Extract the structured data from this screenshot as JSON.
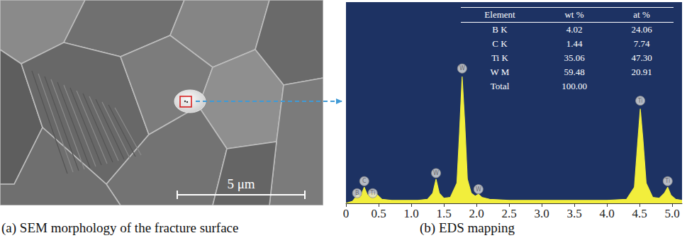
{
  "image": {
    "scale_bar": "5 μm",
    "caption": "(a) SEM morphology of the fracture surface"
  },
  "chart_data": {
    "type": "area",
    "caption": "(b) EDS mapping",
    "x": [
      0,
      0.1,
      0.15,
      0.18,
      0.22,
      0.28,
      0.33,
      0.4,
      0.47,
      0.55,
      0.7,
      0.9,
      1.1,
      1.25,
      1.33,
      1.38,
      1.43,
      1.5,
      1.6,
      1.7,
      1.74,
      1.78,
      1.82,
      1.86,
      1.92,
      1.98,
      2.03,
      2.08,
      2.2,
      2.5,
      3,
      3.5,
      4,
      4.3,
      4.42,
      4.47,
      4.51,
      4.55,
      4.6,
      4.7,
      4.8,
      4.88,
      4.93,
      4.98,
      5.05,
      5.15
    ],
    "values": [
      0,
      1,
      3,
      4.5,
      3,
      8,
      4,
      5,
      4.5,
      2,
      1.5,
      1.5,
      1.5,
      2,
      5,
      12,
      5,
      2.5,
      3,
      10,
      35,
      63,
      40,
      12,
      5,
      3.5,
      4.5,
      3,
      2,
      1.5,
      1.5,
      1.5,
      1.5,
      2,
      8,
      30,
      47,
      32,
      10,
      3,
      2.5,
      5,
      8,
      4,
      2,
      1.5
    ],
    "color": "#f2ee3c",
    "xlim": [
      0,
      5.15
    ],
    "ylim": [
      0,
      100
    ],
    "xticks": [
      0,
      0.5,
      {
        "value": 1,
        "label": "1.0"
      },
      1.5,
      {
        "value": 2,
        "label": "2.0"
      },
      2.5,
      {
        "value": 3,
        "label": "3.0"
      },
      3.5,
      {
        "value": 4,
        "label": "4.0"
      },
      4.5,
      {
        "value": 5,
        "label": "5.0"
      }
    ],
    "tick_labels": "x",
    "grid": false,
    "annotations": [
      {
        "text": "B",
        "x": 0.17,
        "y": 5
      },
      {
        "text": "C",
        "x": 0.28,
        "y": 11
      },
      {
        "text": "Ti",
        "x": 0.41,
        "y": 5
      },
      {
        "text": "W",
        "x": 1.38,
        "y": 15
      },
      {
        "text": "W",
        "x": 1.78,
        "y": 67
      },
      {
        "text": "W",
        "x": 2.03,
        "y": 7
      },
      {
        "text": "Ti",
        "x": 4.51,
        "y": 51
      },
      {
        "text": "Ti",
        "x": 4.93,
        "y": 11
      }
    ],
    "table": {
      "columns": [
        "Element",
        "wt %",
        "at %"
      ],
      "rows": [
        [
          "B K",
          "4.02",
          "24.06"
        ],
        [
          "C K",
          "1.44",
          "7.74"
        ],
        [
          "Ti K",
          "35.06",
          "47.30"
        ],
        [
          "W M",
          "59.48",
          "20.91"
        ],
        [
          "Total",
          "100.00",
          ""
        ]
      ]
    }
  }
}
